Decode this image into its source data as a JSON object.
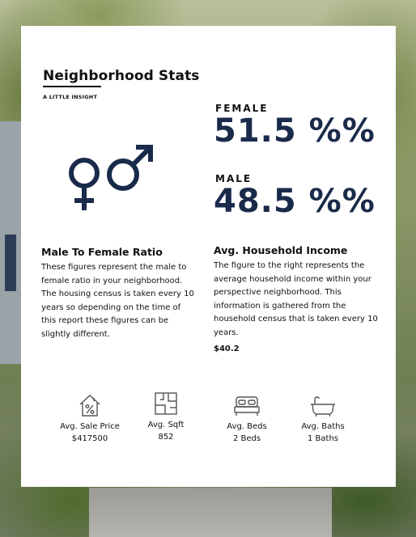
{
  "title": "Neighborhood Stats",
  "subtitle": "A LITTLE INSIGHT",
  "female": {
    "label": "FEMALE",
    "value": "51.5 %%"
  },
  "male": {
    "label": "MALE",
    "value": "48.5 %%"
  },
  "ratio": {
    "heading": "Male To Female Ratio",
    "body": "These figures represent the male to female ratio in your neighborhood. The housing census is taken every 10 years so depending on the time of this report these figures can be slightly different."
  },
  "income": {
    "heading": "Avg. Household Income",
    "body": "The figure to the right represents the average household income within your perspective neighborhood. This information is gathered from the household census that is taken every 10 years.",
    "value": "$40.2"
  },
  "features": [
    {
      "icon": "house-percent-icon",
      "label": "Avg. Sale Price",
      "value": "$417500"
    },
    {
      "icon": "floorplan-icon",
      "label": "Avg. Sqft",
      "value": "852"
    },
    {
      "icon": "bed-icon",
      "label": "Avg. Beds",
      "value": "2 Beds"
    },
    {
      "icon": "bathtub-icon",
      "label": "Avg. Baths",
      "value": "1 Baths"
    }
  ],
  "colors": {
    "accent": "#1a2a4a",
    "card": "#ffffff",
    "text": "#111111"
  }
}
